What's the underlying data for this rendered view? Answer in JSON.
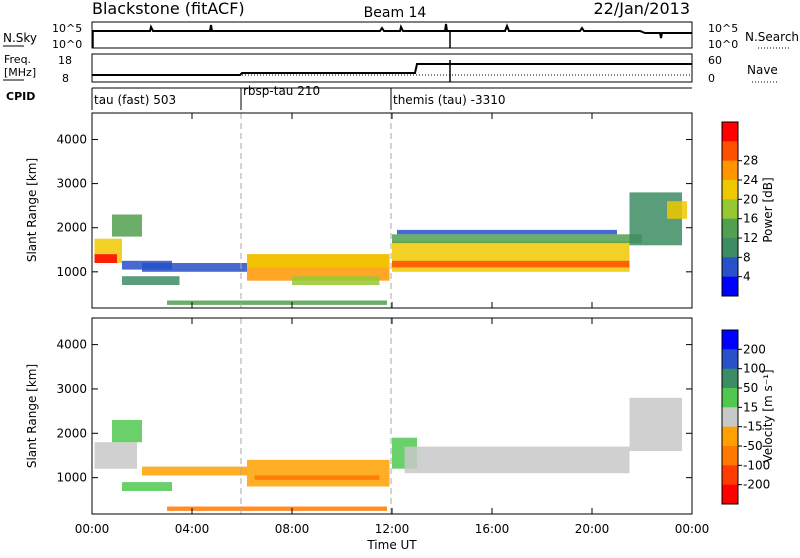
{
  "header": {
    "station": "Blackstone (fitACF)",
    "beam": "Beam 14",
    "date": "22/Jan/2013"
  },
  "noise_panel": {
    "left_label": "N.Sky",
    "left_ticks": [
      "10^5",
      "10^0"
    ],
    "right_label": "N.Search",
    "right_ticks": [
      "10^5",
      "10^0"
    ]
  },
  "freq_panel": {
    "left_label_line1": "Freq.",
    "left_label_line2": "[MHz]",
    "left_ticks": [
      "18",
      "8"
    ],
    "right_label": "Nave",
    "right_ticks": [
      "60",
      "0"
    ]
  },
  "cpid_panel": {
    "label": "CPID",
    "segments": [
      {
        "start": 0,
        "label": "tau (fast) 503"
      },
      {
        "start": 6,
        "label": "rbsp-tau 210"
      },
      {
        "start": 12,
        "label": "themis (tau) -3310"
      }
    ]
  },
  "colors": {
    "power": [
      "#0000ff",
      "#2850c8",
      "#3c8c64",
      "#50a050",
      "#96c832",
      "#f0c800",
      "#ff9600",
      "#ff5000",
      "#ff0000"
    ],
    "velocity": [
      "#0000ff",
      "#2850c8",
      "#3c8c64",
      "#50c850",
      "#c8c8c8",
      "#ffa000",
      "#ff7800",
      "#ff3c00",
      "#ff0000"
    ]
  },
  "chart_data": [
    {
      "type": "heatmap",
      "panel": "power",
      "title": "",
      "ylabel": "Slant Range [km]",
      "ylim": [
        180,
        4600
      ],
      "xlim": [
        0,
        24
      ],
      "yticks": [
        "1000",
        "2000",
        "3000",
        "4000"
      ],
      "colorbar_label": "Power [dB]",
      "colorbar_ticks": [
        "4",
        "8",
        "12",
        "16",
        "20",
        "24",
        "28"
      ],
      "colorbar_range": [
        0,
        32
      ],
      "bands": [
        {
          "t0": 0.1,
          "t1": 1.2,
          "r0": 1200,
          "r1": 1750,
          "color_index": 5
        },
        {
          "t0": 0.1,
          "t1": 1.0,
          "r0": 1200,
          "r1": 1400,
          "color_index": 8
        },
        {
          "t0": 0.8,
          "t1": 2.0,
          "r0": 1800,
          "r1": 2300,
          "color_index": 3
        },
        {
          "t0": 1.2,
          "t1": 3.2,
          "r0": 1050,
          "r1": 1250,
          "color_index": 1
        },
        {
          "t0": 2.0,
          "t1": 6.2,
          "r0": 1000,
          "r1": 1200,
          "color_index": 1
        },
        {
          "t0": 1.2,
          "t1": 3.5,
          "r0": 700,
          "r1": 900,
          "color_index": 2
        },
        {
          "t0": 3.0,
          "t1": 11.8,
          "r0": 250,
          "r1": 350,
          "color_index": 3
        },
        {
          "t0": 6.2,
          "t1": 11.9,
          "r0": 800,
          "r1": 1400,
          "color_index": 6
        },
        {
          "t0": 6.2,
          "t1": 11.9,
          "r0": 1100,
          "r1": 1400,
          "color_index": 5
        },
        {
          "t0": 8.0,
          "t1": 11.5,
          "r0": 700,
          "r1": 900,
          "color_index": 4
        },
        {
          "t0": 12.0,
          "t1": 21.5,
          "r0": 1000,
          "r1": 1700,
          "color_index": 5
        },
        {
          "t0": 12.0,
          "t1": 21.5,
          "r0": 1100,
          "r1": 1250,
          "color_index": 7
        },
        {
          "t0": 12.0,
          "t1": 22.0,
          "r0": 1650,
          "r1": 1850,
          "color_index": 3
        },
        {
          "t0": 12.2,
          "t1": 21.0,
          "r0": 1850,
          "r1": 1950,
          "color_index": 1
        },
        {
          "t0": 21.5,
          "t1": 23.6,
          "r0": 1600,
          "r1": 2800,
          "color_index": 2
        },
        {
          "t0": 23.0,
          "t1": 23.8,
          "r0": 2200,
          "r1": 2600,
          "color_index": 5
        }
      ]
    },
    {
      "type": "heatmap",
      "panel": "velocity",
      "title": "",
      "ylabel": "Slant Range [km]",
      "xlabel": "Time UT",
      "ylim": [
        180,
        4600
      ],
      "xlim": [
        0,
        24
      ],
      "yticks": [
        "1000",
        "2000",
        "3000",
        "4000"
      ],
      "xticks": [
        "00:00",
        "04:00",
        "08:00",
        "12:00",
        "16:00",
        "20:00",
        "00:00"
      ],
      "colorbar_label": "Velocity [m s⁻¹]",
      "colorbar_ticks": [
        "200",
        "100",
        "50",
        "15",
        "-15",
        "-50",
        "-100",
        "-200"
      ],
      "bands": [
        {
          "t0": 0.1,
          "t1": 1.8,
          "r0": 1200,
          "r1": 1800,
          "color_index": 4
        },
        {
          "t0": 0.8,
          "t1": 2.0,
          "r0": 1800,
          "r1": 2300,
          "color_index": 3
        },
        {
          "t0": 1.2,
          "t1": 3.2,
          "r0": 700,
          "r1": 900,
          "color_index": 3
        },
        {
          "t0": 2.0,
          "t1": 6.2,
          "r0": 1050,
          "r1": 1250,
          "color_index": 5
        },
        {
          "t0": 3.0,
          "t1": 11.8,
          "r0": 250,
          "r1": 350,
          "color_index": 6
        },
        {
          "t0": 6.2,
          "t1": 11.9,
          "r0": 800,
          "r1": 1400,
          "color_index": 5
        },
        {
          "t0": 6.5,
          "t1": 11.5,
          "r0": 950,
          "r1": 1050,
          "color_index": 6
        },
        {
          "t0": 12.0,
          "t1": 13.0,
          "r0": 1200,
          "r1": 1900,
          "color_index": 3
        },
        {
          "t0": 12.5,
          "t1": 21.5,
          "r0": 1100,
          "r1": 1700,
          "color_index": 4
        },
        {
          "t0": 21.5,
          "t1": 23.6,
          "r0": 1600,
          "r1": 2800,
          "color_index": 4
        }
      ]
    }
  ]
}
